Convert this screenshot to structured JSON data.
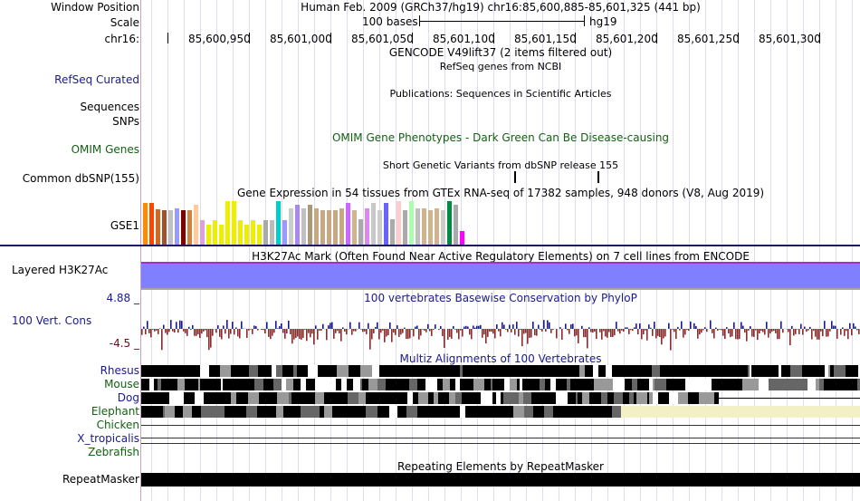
{
  "header": {
    "window_position_label": "Window Position",
    "scale_label": "Scale",
    "chrom_label": "chr16:",
    "assembly_title": "Human Feb. 2009 (GRCh37/hg19)   chr16:85,600,885-85,601,325 (441 bp)",
    "scale_text": "100 bases",
    "scale_db": "hg19",
    "positions": [
      "85,600,950",
      "85,601,000",
      "85,601,050",
      "85,601,100",
      "85,601,150",
      "85,601,200",
      "85,601,250",
      "85,601,300"
    ]
  },
  "tracks": {
    "gencode_title": "GENCODE V49lift37 (2 items filtered out)",
    "refseq_subtitle": "RefSeq genes from NCBI",
    "refseq_label": "RefSeq Curated",
    "publications_title": "Publications: Sequences in Scientific Articles",
    "sequences_label": "Sequences",
    "snps_label": "SNPs",
    "omim_label": "OMIM Genes",
    "omim_title": "OMIM Gene Phenotypes - Dark Green Can Be Disease-causing",
    "dbsnp_title": "Short Genetic Variants from dbSNP release 155",
    "dbsnp_label": "Common dbSNP(155)",
    "gtex_title": "Gene Expression in 54 tissues from GTEx RNA-seq of 17382 samples, 948 donors (V8, Aug 2019)",
    "gtex_label": "GSE1",
    "h3k27ac_title": "H3K27Ac Mark (Often Found Near Active Regulatory Elements) on 7 cell lines from ENCODE",
    "h3k27ac_label": "Layered H3K27Ac",
    "phylop_title": "100 vertebrates Basewise Conservation by PhyloP",
    "phylop_label": "100 Vert. Cons",
    "phylop_max": "4.88 _",
    "phylop_min": "-4.5 _",
    "multiz_title": "Multiz Alignments of 100 Vertebrates",
    "species": [
      "Rhesus",
      "Mouse",
      "Dog",
      "Elephant",
      "Chicken",
      "X_tropicalis",
      "Zebrafish"
    ],
    "repeat_title": "Repeating Elements by RepeatMasker",
    "repeat_label": "RepeatMasker"
  },
  "colors": {
    "label_blue": "#1a1a8c",
    "label_green": "#136013",
    "label_maroon": "#6b0a1e",
    "h3k27ac_fill": "#8080ff",
    "phylop_positive": "#1a1a8c",
    "phylop_negative": "#8b2c2c",
    "elephant_gap": "#f3efc6"
  },
  "gtex_bar_colors": [
    "#ff8c00",
    "#ff4500",
    "#d2691e",
    "#a0522d",
    "#c0c0c0",
    "#9999ff",
    "#800000",
    "#cd853f",
    "#ffcc99",
    "#dda0dd",
    "#eeee00",
    "#eeee00",
    "#eeee00",
    "#eeee00",
    "#eeee00",
    "#eeee00",
    "#eeee00",
    "#eeee00",
    "#eeee00",
    "#aaaaaa",
    "#bbbbbb",
    "#00cdcd",
    "#9999ff",
    "#cccccc",
    "#aa88ee",
    "#c0c0c0",
    "#aa9977",
    "#c8a882",
    "#c8a882",
    "#c8a882",
    "#c8a882",
    "#c8a882",
    "#cc66ff",
    "#d2b48c",
    "#aaaaaa",
    "#dd88ee",
    "#c8c8c8",
    "#cccccc",
    "#6666ff",
    "#aaaaaa",
    "#ffcccc",
    "#aaaaaa",
    "#aaffaa",
    "#c0c0c0",
    "#d2b48c",
    "#d2b48c",
    "#d2b48c",
    "#cccccc",
    "#008b45",
    "#aaaaaa",
    "#ff00ff",
    "#ffffff"
  ],
  "gtex_bar_heights": [
    0.94,
    0.94,
    0.8,
    0.77,
    0.77,
    0.81,
    0.77,
    0.77,
    0.9,
    0.55,
    0.45,
    0.55,
    0.45,
    0.98,
    0.98,
    0.55,
    0.45,
    0.55,
    0.45,
    0.55,
    0.55,
    0.98,
    0.55,
    0.81,
    0.9,
    0.81,
    0.9,
    0.81,
    0.77,
    0.77,
    0.77,
    0.81,
    0.94,
    0.77,
    0.57,
    0.81,
    0.94,
    0.77,
    0.94,
    0.57,
    0.98,
    0.77,
    0.98,
    0.81,
    0.81,
    0.77,
    0.81,
    0.77,
    0.98,
    0.9,
    0.3,
    0.0
  ]
}
